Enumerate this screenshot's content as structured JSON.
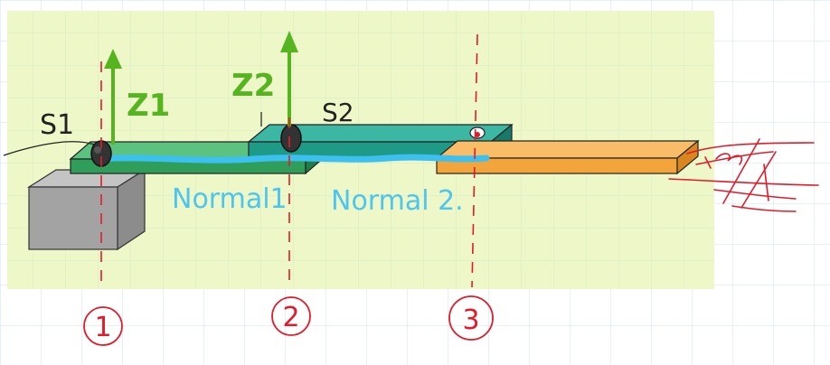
{
  "labels": {
    "z1": "Z1",
    "z2": "Z2",
    "s1": "S1",
    "s2": "S2",
    "normal1": "Normal1",
    "normal2": "Normal 2.",
    "marker1": "1",
    "marker2": "2",
    "marker3": "3"
  },
  "colors": {
    "page_background": "#ffffff",
    "board_background": "#eef7c8",
    "grid_line": "#d6e9c4",
    "page_grid_line": "#cfe2f0",
    "support_block": "#a3a3a3",
    "beam_left": "#2e9e5a",
    "beam_middle": "#1f9a86",
    "beam_right": "#f3a43b",
    "water_line": "#3cc0f0",
    "section_line": "#e11b2a",
    "arrow": "#56b41f",
    "normal_text": "#4cc6ee",
    "ink": "#222222"
  }
}
